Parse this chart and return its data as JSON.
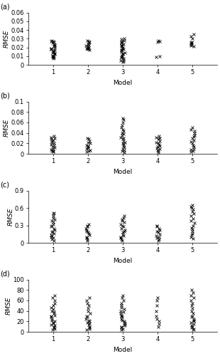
{
  "panels": [
    "(a)",
    "(b)",
    "(c)",
    "(d)"
  ],
  "xlim": [
    0.3,
    5.7
  ],
  "xticks": [
    1,
    2,
    3,
    4,
    5
  ],
  "xlabel": "Model",
  "ylabel": "RMSE",
  "panel_a": {
    "ylim": [
      0,
      0.06
    ],
    "yticks": [
      0,
      0.01,
      0.02,
      0.03,
      0.04,
      0.05,
      0.06
    ],
    "data": {
      "1": [
        0.007,
        0.008,
        0.009,
        0.009,
        0.01,
        0.01,
        0.011,
        0.012,
        0.013,
        0.014,
        0.015,
        0.015,
        0.016,
        0.017,
        0.018,
        0.018,
        0.019,
        0.02,
        0.021,
        0.022,
        0.023,
        0.024,
        0.025,
        0.026,
        0.027,
        0.027,
        0.028
      ],
      "2": [
        0.017,
        0.018,
        0.019,
        0.019,
        0.02,
        0.02,
        0.021,
        0.022,
        0.023,
        0.024,
        0.025,
        0.026,
        0.027,
        0.028
      ],
      "3": [
        0.003,
        0.004,
        0.005,
        0.006,
        0.007,
        0.008,
        0.009,
        0.01,
        0.011,
        0.012,
        0.013,
        0.014,
        0.015,
        0.016,
        0.017,
        0.018,
        0.019,
        0.02,
        0.021,
        0.022,
        0.023,
        0.024,
        0.025,
        0.026,
        0.027,
        0.028,
        0.029,
        0.03
      ],
      "4": [
        0.009,
        0.01,
        0.026,
        0.027,
        0.028
      ],
      "5": [
        0.021,
        0.022,
        0.023,
        0.024,
        0.025,
        0.025,
        0.026,
        0.03,
        0.033,
        0.035
      ]
    }
  },
  "panel_b": {
    "ylim": [
      0,
      0.1
    ],
    "yticks": [
      0,
      0.02,
      0.04,
      0.06,
      0.08,
      0.1
    ],
    "data": {
      "1": [
        0.004,
        0.005,
        0.006,
        0.008,
        0.01,
        0.012,
        0.014,
        0.016,
        0.018,
        0.02,
        0.022,
        0.024,
        0.026,
        0.028,
        0.03,
        0.032,
        0.034
      ],
      "2": [
        0.004,
        0.005,
        0.007,
        0.009,
        0.011,
        0.013,
        0.015,
        0.017,
        0.02,
        0.022,
        0.025,
        0.028,
        0.03
      ],
      "3": [
        0.003,
        0.005,
        0.007,
        0.009,
        0.012,
        0.015,
        0.018,
        0.02,
        0.022,
        0.025,
        0.028,
        0.03,
        0.032,
        0.035,
        0.038,
        0.04,
        0.043,
        0.046,
        0.05,
        0.055,
        0.06,
        0.065,
        0.068
      ],
      "4": [
        0.003,
        0.005,
        0.007,
        0.009,
        0.011,
        0.013,
        0.015,
        0.018,
        0.02,
        0.022,
        0.025,
        0.028,
        0.03,
        0.032,
        0.034
      ],
      "5": [
        0.004,
        0.006,
        0.008,
        0.01,
        0.013,
        0.016,
        0.02,
        0.023,
        0.026,
        0.03,
        0.033,
        0.036,
        0.04,
        0.043,
        0.046,
        0.05
      ]
    }
  },
  "panel_c": {
    "ylim": [
      0,
      0.9
    ],
    "yticks": [
      0,
      0.3,
      0.6,
      0.9
    ],
    "data": {
      "1": [
        0.04,
        0.06,
        0.08,
        0.1,
        0.12,
        0.14,
        0.16,
        0.18,
        0.2,
        0.22,
        0.25,
        0.28,
        0.3,
        0.32,
        0.35,
        0.38,
        0.4,
        0.43,
        0.46,
        0.5,
        0.52
      ],
      "2": [
        0.04,
        0.06,
        0.08,
        0.1,
        0.13,
        0.16,
        0.18,
        0.2,
        0.22,
        0.25,
        0.28,
        0.3,
        0.32
      ],
      "3": [
        0.04,
        0.06,
        0.08,
        0.1,
        0.12,
        0.15,
        0.18,
        0.2,
        0.22,
        0.25,
        0.28,
        0.3,
        0.32,
        0.35,
        0.38,
        0.4,
        0.43,
        0.46
      ],
      "4": [
        0.04,
        0.06,
        0.08,
        0.1,
        0.12,
        0.15,
        0.18,
        0.2,
        0.22,
        0.25,
        0.28,
        0.3
      ],
      "5": [
        0.07,
        0.1,
        0.13,
        0.16,
        0.2,
        0.23,
        0.26,
        0.3,
        0.34,
        0.38,
        0.42,
        0.46,
        0.5,
        0.54,
        0.57,
        0.6,
        0.63,
        0.65
      ]
    }
  },
  "panel_d": {
    "ylim": [
      0,
      100
    ],
    "yticks": [
      0,
      20,
      40,
      60,
      80,
      100
    ],
    "data": {
      "1": [
        4,
        6,
        8,
        10,
        12,
        14,
        16,
        18,
        20,
        22,
        25,
        28,
        30,
        32,
        35,
        38,
        40,
        43,
        46,
        50,
        55,
        60,
        65,
        70
      ],
      "2": [
        4,
        6,
        8,
        10,
        13,
        16,
        18,
        20,
        22,
        25,
        28,
        30,
        35,
        40,
        45,
        50,
        55,
        60,
        65
      ],
      "3": [
        4,
        6,
        8,
        10,
        12,
        14,
        16,
        18,
        20,
        22,
        25,
        28,
        30,
        32,
        35,
        38,
        40,
        43,
        46,
        50,
        55,
        60,
        65,
        70
      ],
      "4": [
        10,
        15,
        20,
        25,
        30,
        40,
        50,
        60,
        65
      ],
      "5": [
        4,
        6,
        8,
        10,
        12,
        15,
        18,
        20,
        22,
        25,
        28,
        30,
        35,
        40,
        45,
        50,
        55,
        60,
        65,
        70,
        75,
        80
      ]
    }
  }
}
